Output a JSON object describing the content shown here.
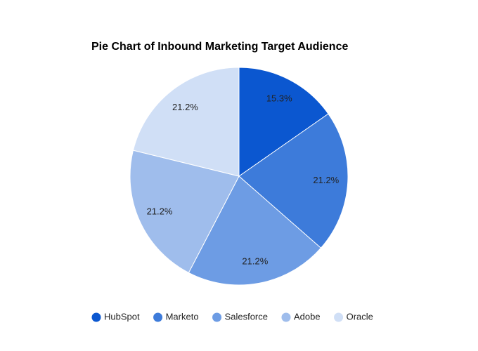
{
  "chart_data": {
    "type": "pie",
    "title": "Pie Chart of Inbound Marketing Target Audience",
    "categories": [
      "HubSpot",
      "Marketo",
      "Salesforce",
      "Adobe",
      "Oracle"
    ],
    "values": [
      15.3,
      21.2,
      21.2,
      21.2,
      21.2
    ],
    "value_labels": [
      "15.3%",
      "21.2%",
      "21.2%",
      "21.2%",
      "21.2%"
    ],
    "colors": [
      "#0b57d0",
      "#3d7bda",
      "#6d9ce4",
      "#9fbdec",
      "#d0dff6"
    ],
    "legend": "bottom"
  }
}
